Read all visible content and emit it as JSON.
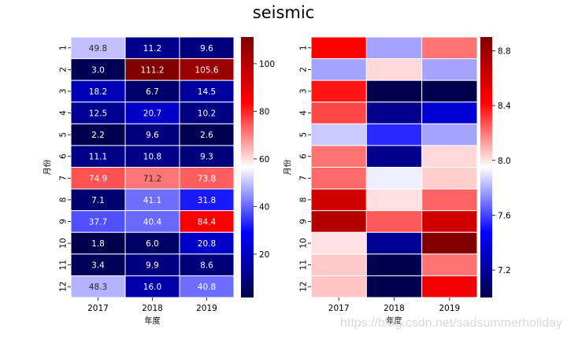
{
  "title": "seismic",
  "watermark": "https://blog.csdn.net/sadsummerholiday",
  "chart_data": [
    {
      "type": "heatmap",
      "colormap": "seismic",
      "xlabel": "年度",
      "ylabel": "月份",
      "x_categories": [
        "2017",
        "2018",
        "2019"
      ],
      "y_categories": [
        "1",
        "2",
        "3",
        "4",
        "5",
        "6",
        "7",
        "8",
        "9",
        "10",
        "11",
        "12"
      ],
      "annotated": true,
      "values": [
        [
          49.8,
          11.2,
          9.6
        ],
        [
          3.0,
          111.2,
          105.6
        ],
        [
          18.2,
          6.7,
          14.5
        ],
        [
          12.5,
          20.7,
          10.2
        ],
        [
          2.2,
          9.6,
          2.6
        ],
        [
          11.1,
          10.8,
          9.3
        ],
        [
          74.9,
          71.2,
          73.8
        ],
        [
          7.1,
          41.1,
          31.8
        ],
        [
          37.7,
          40.4,
          84.4
        ],
        [
          1.8,
          6.0,
          20.8
        ],
        [
          3.4,
          9.9,
          8.6
        ],
        [
          48.3,
          16.0,
          40.8
        ]
      ],
      "vmin": 1.8,
      "vmax": 111.2,
      "colorbar_ticks": [
        "20",
        "40",
        "60",
        "80",
        "100"
      ],
      "colorbar_tick_values": [
        20,
        40,
        60,
        80,
        100
      ]
    },
    {
      "type": "heatmap",
      "colormap": "seismic",
      "xlabel": "年度",
      "ylabel": "月份",
      "x_categories": [
        "2017",
        "2018",
        "2019"
      ],
      "y_categories": [
        "1",
        "2",
        "3",
        "4",
        "5",
        "6",
        "7",
        "8",
        "9",
        "10",
        "11",
        "12"
      ],
      "annotated": false,
      "values": [
        [
          8.43,
          7.78,
          8.21
        ],
        [
          7.78,
          8.02,
          7.78
        ],
        [
          8.39,
          7.0,
          7.0
        ],
        [
          8.29,
          7.17,
          7.36
        ],
        [
          7.85,
          7.55,
          7.78
        ],
        [
          8.21,
          7.17,
          8.02
        ],
        [
          8.23,
          7.92,
          8.04
        ],
        [
          8.6,
          8.01,
          8.24
        ],
        [
          8.71,
          8.26,
          8.6
        ],
        [
          8.01,
          7.19,
          8.9
        ],
        [
          8.05,
          7.0,
          8.21
        ],
        [
          8.06,
          7.0,
          8.48
        ]
      ],
      "vmin": 7.0,
      "vmax": 8.9,
      "colorbar_ticks": [
        "7.2",
        "7.6",
        "8.0",
        "8.4",
        "8.8"
      ],
      "colorbar_tick_values": [
        7.2,
        7.6,
        8.0,
        8.4,
        8.8
      ]
    }
  ]
}
